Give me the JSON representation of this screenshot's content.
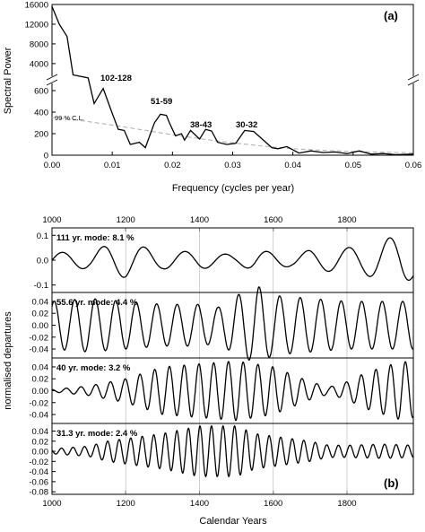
{
  "figure": {
    "panel_a": {
      "letter": "(a)",
      "ylabel": "Spectral Power",
      "xlabel": "Frequency (cycles per year)",
      "x_ticks": [
        "0.00",
        "0.01",
        "0.02",
        "0.03",
        "0.04",
        "0.05",
        "0.06"
      ],
      "upper_ticks": [
        "16000",
        "12000",
        "8000",
        "4000"
      ],
      "lower_ticks": [
        "600",
        "400",
        "200",
        "0"
      ],
      "cl_label": "99 % C.L.",
      "annotations": [
        "102-128",
        "51-59",
        "38-43",
        "30-32"
      ]
    },
    "panel_b": {
      "letter": "(b)",
      "ylabel": "normalised departures",
      "xlabel": "Calendar Years",
      "x_ticks": [
        "1000",
        "1200",
        "1400",
        "1600",
        "1800"
      ],
      "modes": [
        {
          "label": "111 yr. mode: 8.1 %",
          "ticks": [
            "0.1",
            "0.0",
            "-0.1"
          ]
        },
        {
          "label": "55.6 yr. mode: 4.4 %",
          "ticks": [
            "0.04",
            "0.02",
            "0.00",
            "-0.02",
            "-0.04"
          ]
        },
        {
          "label": "40 yr. mode: 3.2 %",
          "ticks": [
            "0.04",
            "0.02",
            "0.00",
            "-0.02",
            "-0.04"
          ]
        },
        {
          "label": "31.3 yr. mode: 2.4 %",
          "ticks": [
            "0.04",
            "0.02",
            "0.00",
            "-0.02",
            "-0.04",
            "-0.06",
            "-0.08"
          ]
        }
      ]
    }
  },
  "chart_data": [
    {
      "type": "line",
      "title": "(a)",
      "xlabel": "Frequency (cycles per year)",
      "ylabel": "Spectral Power",
      "xlim": [
        0,
        0.06
      ],
      "y_axis_broken": true,
      "ylim_upper_segment": [
        700,
        16000
      ],
      "ylim_lower_segment": [
        0,
        700
      ],
      "grid": false,
      "series": [
        {
          "x": [
            0,
            0.0012,
            0.0025,
            0.0035,
            0.006,
            0.007,
            0.0085,
            0.0098,
            0.011,
            0.012,
            0.013,
            0.0145,
            0.0155,
            0.017,
            0.018,
            0.019,
            0.0195,
            0.0205,
            0.0215,
            0.022,
            0.023,
            0.0245,
            0.0255,
            0.0265,
            0.0275,
            0.029,
            0.0305,
            0.032,
            0.0335,
            0.035,
            0.0365,
            0.0375,
            0.039,
            0.041,
            0.043,
            0.045,
            0.047,
            0.049,
            0.051,
            0.053,
            0.055,
            0.057,
            0.06
          ],
          "y": [
            15600,
            12000,
            9500,
            1700,
            1100,
            480,
            620,
            420,
            240,
            230,
            100,
            120,
            70,
            300,
            380,
            370,
            300,
            180,
            200,
            140,
            230,
            150,
            240,
            225,
            120,
            100,
            110,
            230,
            220,
            145,
            70,
            60,
            80,
            20,
            40,
            25,
            30,
            15,
            40,
            10,
            15,
            5,
            10
          ]
        }
      ],
      "confidence_curve": {
        "name": "99 % C.L.",
        "x": [
          0,
          0.005,
          0.01,
          0.015,
          0.02,
          0.025,
          0.03,
          0.035,
          0.04,
          0.045,
          0.05,
          0.055,
          0.06
        ],
        "y": [
          350,
          320,
          280,
          235,
          190,
          150,
          115,
          85,
          60,
          45,
          35,
          28,
          22
        ]
      },
      "annotations": [
        {
          "text": "102-128",
          "x": 0.0095,
          "y": 630
        },
        {
          "text": "51-59",
          "x": 0.018,
          "y": 430
        },
        {
          "text": "38-43",
          "x": 0.0255,
          "y": 250
        },
        {
          "text": "30-32",
          "x": 0.0325,
          "y": 250
        }
      ]
    },
    {
      "type": "line",
      "title": "111 yr. mode: 8.1 %",
      "xlim": [
        1000,
        1980
      ],
      "ylim": [
        -0.13,
        0.13
      ],
      "xlabel": "Calendar Years",
      "ylabel": "normalised departures",
      "grid": "vertical at 1200, 1400, 1600, 1800",
      "period_years": 111,
      "amplitude_envelope": {
        "years": [
          1000,
          1100,
          1150,
          1200,
          1300,
          1400,
          1500,
          1550,
          1650,
          1700,
          1800,
          1850,
          1900,
          1950,
          1980
        ],
        "amplitude": [
          0.03,
          0.035,
          0.06,
          0.07,
          0.035,
          0.035,
          0.02,
          0.04,
          0.025,
          0.04,
          0.05,
          0.06,
          0.085,
          0.1,
          0.07
        ]
      }
    },
    {
      "type": "line",
      "title": "55.6 yr. mode: 4.4 %",
      "xlim": [
        1000,
        1980
      ],
      "ylim": [
        -0.055,
        0.055
      ],
      "period_years": 55.6,
      "amplitude_envelope": {
        "years": [
          1000,
          1100,
          1200,
          1300,
          1400,
          1450,
          1500,
          1560,
          1600,
          1700,
          1800,
          1900,
          1980
        ],
        "amplitude": [
          0.04,
          0.045,
          0.04,
          0.035,
          0.035,
          0.03,
          0.05,
          0.065,
          0.05,
          0.045,
          0.04,
          0.04,
          0.04
        ]
      }
    },
    {
      "type": "line",
      "title": "40 yr. mode: 3.2 %",
      "xlim": [
        1000,
        1980
      ],
      "ylim": [
        -0.055,
        0.055
      ],
      "period_years": 40,
      "amplitude_envelope": {
        "years": [
          1000,
          1100,
          1200,
          1300,
          1400,
          1500,
          1600,
          1700,
          1750,
          1800,
          1850,
          1900,
          1950,
          1980
        ],
        "amplitude": [
          0.002,
          0.008,
          0.02,
          0.04,
          0.045,
          0.05,
          0.04,
          0.015,
          0.006,
          0.015,
          0.03,
          0.04,
          0.05,
          0.045
        ]
      }
    },
    {
      "type": "line",
      "title": "31.3 yr. mode: 2.4 %",
      "xlim": [
        1000,
        1980
      ],
      "ylim": [
        -0.085,
        0.055
      ],
      "period_years": 31.3,
      "amplitude_envelope": {
        "years": [
          1000,
          1100,
          1150,
          1200,
          1300,
          1400,
          1450,
          1500,
          1550,
          1600,
          1700,
          1750,
          1800,
          1900,
          1980
        ],
        "amplitude": [
          0.005,
          0.01,
          0.02,
          0.025,
          0.035,
          0.05,
          0.05,
          0.05,
          0.035,
          0.03,
          0.02,
          0.012,
          0.012,
          0.014,
          0.012
        ]
      }
    }
  ]
}
